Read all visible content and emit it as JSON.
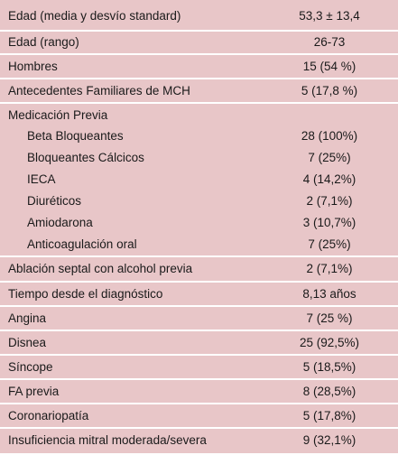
{
  "rows": [
    {
      "label": "Edad (media y desvío standard)",
      "value": "53,3 ± 13,4"
    },
    {
      "label": "Edad (rango)",
      "value": "26-73"
    },
    {
      "label": "Hombres",
      "value": "15 (54 %)"
    },
    {
      "label": "Antecedentes Familiares de MCH",
      "value": "5 (17,8 %)"
    },
    {
      "label": "Ablación septal con alcohol previa",
      "value": "2 (7,1%)"
    },
    {
      "label": "Tiempo desde el diagnóstico",
      "value": "8,13 años"
    },
    {
      "label": "Angina",
      "value": "7 (25 %)"
    },
    {
      "label": "Disnea",
      "value": "25 (92,5%)"
    },
    {
      "label": "Síncope",
      "value": "5 (18,5%)"
    },
    {
      "label": "FA previa",
      "value": "8 (28,5%)"
    },
    {
      "label": "Coronariopatía",
      "value": "5 (17,8%)"
    },
    {
      "label": "Insuficiencia mitral moderada/severa",
      "value": "9 (32,1%)"
    }
  ],
  "medication": {
    "heading": "Medicación Previa",
    "items": [
      {
        "label": "Beta Bloqueantes",
        "value": "28 (100%)"
      },
      {
        "label": "Bloqueantes Cálcicos",
        "value": "7 (25%)"
      },
      {
        "label": "IECA",
        "value": "4 (14,2%)"
      },
      {
        "label": "Diuréticos",
        "value": "2 (7,1%)"
      },
      {
        "label": "Amiodarona",
        "value": "3 (10,7%)"
      },
      {
        "label": "Anticoagulación oral",
        "value": "7 (25%)"
      }
    ]
  }
}
